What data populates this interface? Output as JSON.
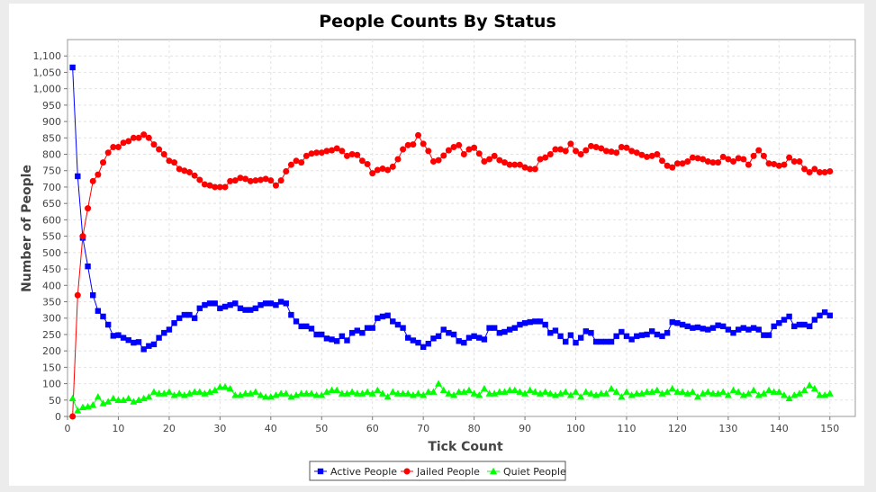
{
  "chart_data": {
    "type": "line",
    "title": "People Counts By Status",
    "xlabel": "Tick Count",
    "ylabel": "Number of People",
    "xlim": [
      0,
      155
    ],
    "ylim": [
      0,
      1150
    ],
    "x_ticks": [
      0,
      10,
      20,
      30,
      40,
      50,
      60,
      70,
      80,
      90,
      100,
      110,
      120,
      130,
      140,
      150
    ],
    "x_tick_labels": [
      "0",
      "10",
      "20",
      "30",
      "40",
      "50",
      "60",
      "70",
      "80",
      "90",
      "100",
      "110",
      "120",
      "130",
      "140",
      "150"
    ],
    "y_ticks": [
      0,
      50,
      100,
      150,
      200,
      250,
      300,
      350,
      400,
      450,
      500,
      550,
      600,
      650,
      700,
      750,
      800,
      850,
      900,
      950,
      1000,
      1050,
      1100
    ],
    "y_tick_labels": [
      "0",
      "50",
      "100",
      "150",
      "200",
      "250",
      "300",
      "350",
      "400",
      "450",
      "500",
      "550",
      "600",
      "650",
      "700",
      "750",
      "800",
      "850",
      "900",
      "950",
      "1,000",
      "1,050",
      "1,100"
    ],
    "grid": true,
    "legend_position": "bottom",
    "x": [
      1,
      2,
      3,
      4,
      5,
      6,
      7,
      8,
      9,
      10,
      11,
      12,
      13,
      14,
      15,
      16,
      17,
      18,
      19,
      20,
      21,
      22,
      23,
      24,
      25,
      26,
      27,
      28,
      29,
      30,
      31,
      32,
      33,
      34,
      35,
      36,
      37,
      38,
      39,
      40,
      41,
      42,
      43,
      44,
      45,
      46,
      47,
      48,
      49,
      50,
      51,
      52,
      53,
      54,
      55,
      56,
      57,
      58,
      59,
      60,
      61,
      62,
      63,
      64,
      65,
      66,
      67,
      68,
      69,
      70,
      71,
      72,
      73,
      74,
      75,
      76,
      77,
      78,
      79,
      80,
      81,
      82,
      83,
      84,
      85,
      86,
      87,
      88,
      89,
      90,
      91,
      92,
      93,
      94,
      95,
      96,
      97,
      98,
      99,
      100,
      101,
      102,
      103,
      104,
      105,
      106,
      107,
      108,
      109,
      110,
      111,
      112,
      113,
      114,
      115,
      116,
      117,
      118,
      119,
      120,
      121,
      122,
      123,
      124,
      125,
      126,
      127,
      128,
      129,
      130,
      131,
      132,
      133,
      134,
      135,
      136,
      137,
      138,
      139,
      140,
      141,
      142,
      143,
      144,
      145,
      146,
      147,
      148,
      149,
      150
    ],
    "series": [
      {
        "name": "Active People",
        "color": "#0000ff",
        "marker": "square",
        "values": [
          1065,
          733,
          545,
          458,
          370,
          322,
          305,
          280,
          246,
          248,
          240,
          233,
          225,
          227,
          205,
          215,
          220,
          240,
          255,
          265,
          285,
          300,
          310,
          310,
          300,
          330,
          340,
          345,
          345,
          330,
          335,
          340,
          345,
          330,
          325,
          325,
          330,
          340,
          345,
          345,
          340,
          350,
          345,
          310,
          290,
          275,
          275,
          268,
          250,
          250,
          238,
          235,
          230,
          245,
          232,
          255,
          262,
          255,
          270,
          270,
          300,
          305,
          308,
          290,
          280,
          270,
          240,
          232,
          225,
          212,
          222,
          238,
          245,
          265,
          255,
          250,
          230,
          225,
          240,
          245,
          240,
          235,
          270,
          270,
          255,
          258,
          265,
          270,
          280,
          285,
          288,
          290,
          290,
          280,
          255,
          262,
          245,
          228,
          248,
          225,
          240,
          260,
          255,
          228,
          228,
          228,
          228,
          245,
          258,
          245,
          235,
          245,
          248,
          250,
          260,
          250,
          245,
          255,
          288,
          285,
          280,
          275,
          270,
          272,
          268,
          265,
          270,
          278,
          275,
          265,
          255,
          265,
          270,
          265,
          270,
          265,
          248,
          248,
          275,
          285,
          295,
          305,
          275,
          280,
          280,
          275,
          295,
          308,
          318,
          308
        ]
      },
      {
        "name": "Jailed People",
        "color": "#ff0000",
        "marker": "circle",
        "values": [
          0,
          370,
          550,
          635,
          718,
          738,
          775,
          805,
          822,
          822,
          835,
          840,
          850,
          850,
          860,
          850,
          830,
          815,
          800,
          780,
          775,
          755,
          750,
          745,
          735,
          722,
          708,
          705,
          700,
          700,
          700,
          718,
          720,
          728,
          725,
          718,
          720,
          722,
          725,
          720,
          705,
          720,
          748,
          768,
          780,
          775,
          795,
          802,
          805,
          805,
          810,
          812,
          818,
          810,
          795,
          800,
          798,
          780,
          770,
          742,
          752,
          756,
          752,
          762,
          785,
          815,
          828,
          830,
          858,
          832,
          810,
          778,
          782,
          796,
          812,
          822,
          828,
          800,
          815,
          820,
          802,
          778,
          785,
          795,
          782,
          775,
          768,
          768,
          768,
          760,
          755,
          755,
          785,
          790,
          800,
          815,
          815,
          810,
          832,
          810,
          800,
          812,
          825,
          822,
          818,
          810,
          808,
          805,
          822,
          820,
          810,
          805,
          798,
          792,
          795,
          800,
          780,
          765,
          760,
          772,
          772,
          778,
          790,
          788,
          785,
          778,
          775,
          775,
          792,
          785,
          778,
          788,
          785,
          768,
          795,
          812,
          795,
          772,
          770,
          765,
          768,
          790,
          778,
          778,
          755,
          745,
          755,
          745,
          745,
          748
        ]
      },
      {
        "name": "Quiet People",
        "color": "#00ff00",
        "marker": "triangle",
        "values": [
          55,
          18,
          28,
          30,
          35,
          60,
          40,
          45,
          55,
          50,
          50,
          55,
          45,
          50,
          55,
          60,
          75,
          70,
          70,
          75,
          65,
          70,
          65,
          70,
          75,
          75,
          70,
          75,
          80,
          90,
          90,
          85,
          65,
          65,
          70,
          70,
          75,
          65,
          60,
          60,
          65,
          70,
          70,
          60,
          65,
          70,
          70,
          70,
          65,
          65,
          75,
          80,
          80,
          70,
          70,
          75,
          70,
          70,
          75,
          70,
          80,
          70,
          60,
          75,
          70,
          70,
          70,
          65,
          70,
          65,
          75,
          75,
          100,
          80,
          70,
          65,
          75,
          75,
          80,
          70,
          65,
          85,
          70,
          70,
          75,
          75,
          80,
          80,
          75,
          70,
          80,
          75,
          70,
          75,
          70,
          65,
          70,
          75,
          65,
          75,
          60,
          75,
          70,
          65,
          70,
          70,
          85,
          75,
          60,
          75,
          65,
          70,
          70,
          75,
          75,
          80,
          70,
          75,
          85,
          75,
          75,
          70,
          75,
          60,
          70,
          75,
          70,
          70,
          75,
          65,
          80,
          75,
          65,
          70,
          80,
          65,
          70,
          80,
          75,
          75,
          65,
          55,
          65,
          70,
          80,
          95,
          85,
          65,
          65,
          70
        ]
      }
    ]
  }
}
